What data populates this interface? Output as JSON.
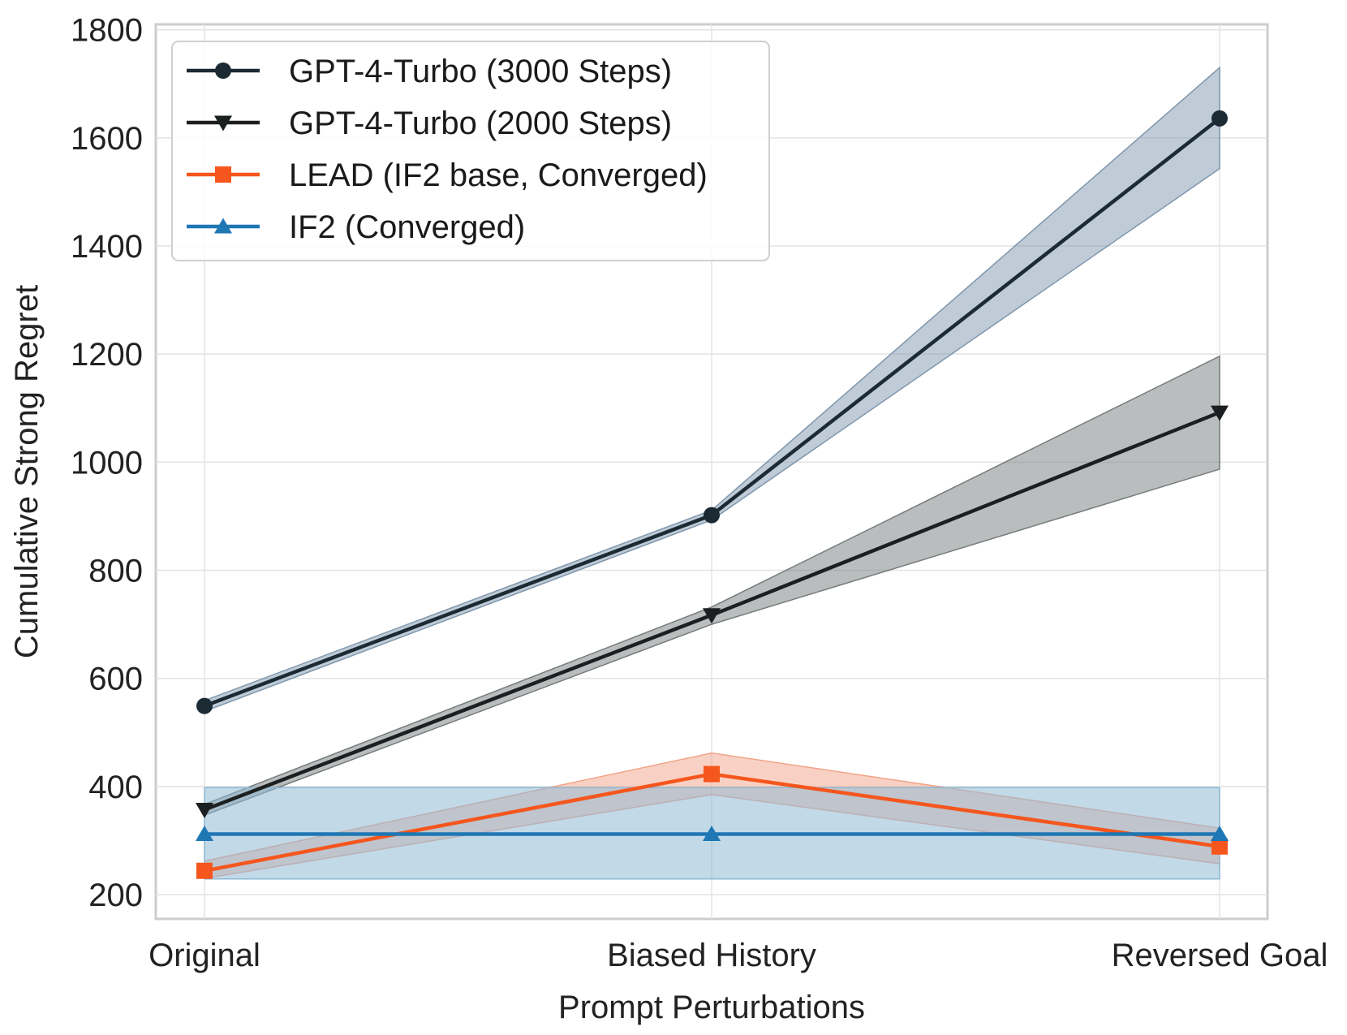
{
  "chart_data": {
    "type": "line",
    "title": "",
    "xlabel": "Prompt Perturbations",
    "ylabel": "Cumulative Strong Regret",
    "categories": [
      "Original",
      "Biased History",
      "Reversed Goal"
    ],
    "ylim": [
      155,
      1810
    ],
    "yticks": [
      200,
      400,
      600,
      800,
      1000,
      1200,
      1400,
      1600,
      1800
    ],
    "grid": true,
    "legend_position": "top-left",
    "series": [
      {
        "name": "GPT-4-Turbo (3000 Steps)",
        "values": [
          549,
          902,
          1636
        ],
        "lower": [
          539,
          893,
          1543
        ],
        "upper": [
          559,
          911,
          1730
        ],
        "color": "#1b2a33",
        "band_color": "#7f97ad",
        "marker": "circle"
      },
      {
        "name": "GPT-4-Turbo (2000 Steps)",
        "values": [
          357,
          717,
          1092
        ],
        "lower": [
          347,
          700,
          987
        ],
        "upper": [
          367,
          732,
          1196
        ],
        "color": "#1c1f1f",
        "band_color": "#767b7b",
        "marker": "triangle-down"
      },
      {
        "name": "LEAD (IF2 base, Converged)",
        "values": [
          244,
          423,
          289
        ],
        "lower": [
          230,
          385,
          257
        ],
        "upper": [
          262,
          462,
          323
        ],
        "color": "#f5561d",
        "band_color": "#f2a48a",
        "marker": "square"
      },
      {
        "name": "IF2 (Converged)",
        "values": [
          312,
          312,
          312
        ],
        "lower": [
          229,
          229,
          229
        ],
        "upper": [
          398,
          398,
          398
        ],
        "color": "#1f77b4",
        "band_color": "#8fb9d6",
        "marker": "triangle-up"
      }
    ]
  }
}
